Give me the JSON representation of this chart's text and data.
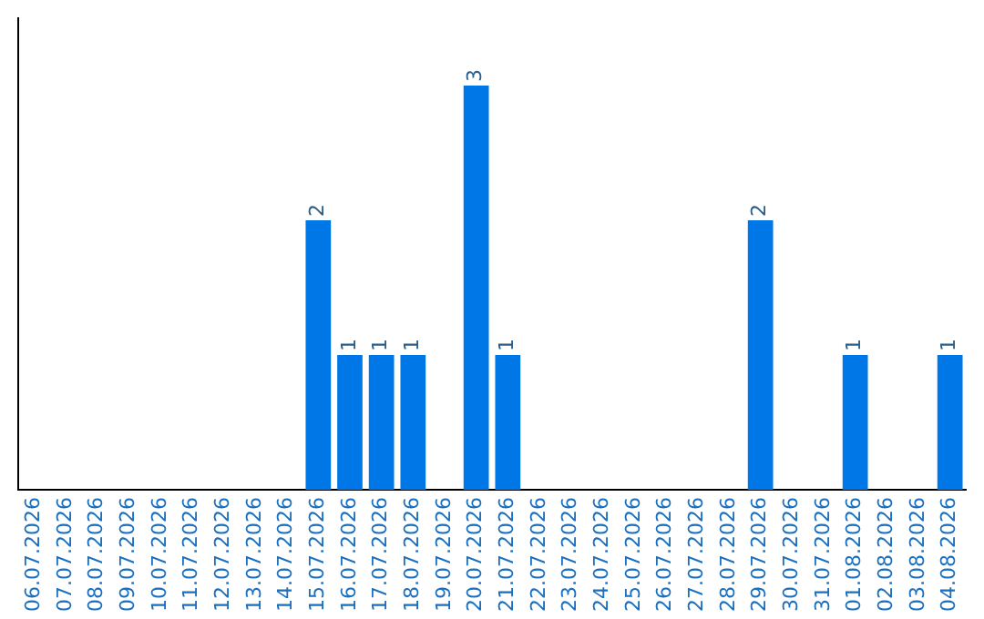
{
  "chart_data": {
    "type": "bar",
    "categories": [
      "06.07.2026",
      "07.07.2026",
      "08.07.2026",
      "09.07.2026",
      "10.07.2026",
      "11.07.2026",
      "12.07.2026",
      "13.07.2026",
      "14.07.2026",
      "15.07.2026",
      "16.07.2026",
      "17.07.2026",
      "18.07.2026",
      "19.07.2026",
      "20.07.2026",
      "21.07.2026",
      "22.07.2026",
      "23.07.2026",
      "24.07.2026",
      "25.07.2026",
      "26.07.2026",
      "27.07.2026",
      "28.07.2026",
      "29.07.2026",
      "30.07.2026",
      "31.07.2026",
      "01.08.2026",
      "02.08.2026",
      "03.08.2026",
      "04.08.2026"
    ],
    "values": [
      0,
      0,
      0,
      0,
      0,
      0,
      0,
      0,
      0,
      2,
      1,
      1,
      1,
      0,
      3,
      1,
      0,
      0,
      0,
      0,
      0,
      0,
      0,
      2,
      0,
      0,
      1,
      0,
      0,
      1
    ],
    "value_labels": [
      null,
      null,
      null,
      null,
      null,
      null,
      null,
      null,
      null,
      "2",
      "1",
      "1",
      "1",
      null,
      "3",
      "1",
      null,
      null,
      null,
      null,
      null,
      null,
      null,
      "2",
      null,
      null,
      "1",
      null,
      null,
      "1"
    ],
    "color": "#0077e6",
    "grid": false,
    "legend": false
  }
}
